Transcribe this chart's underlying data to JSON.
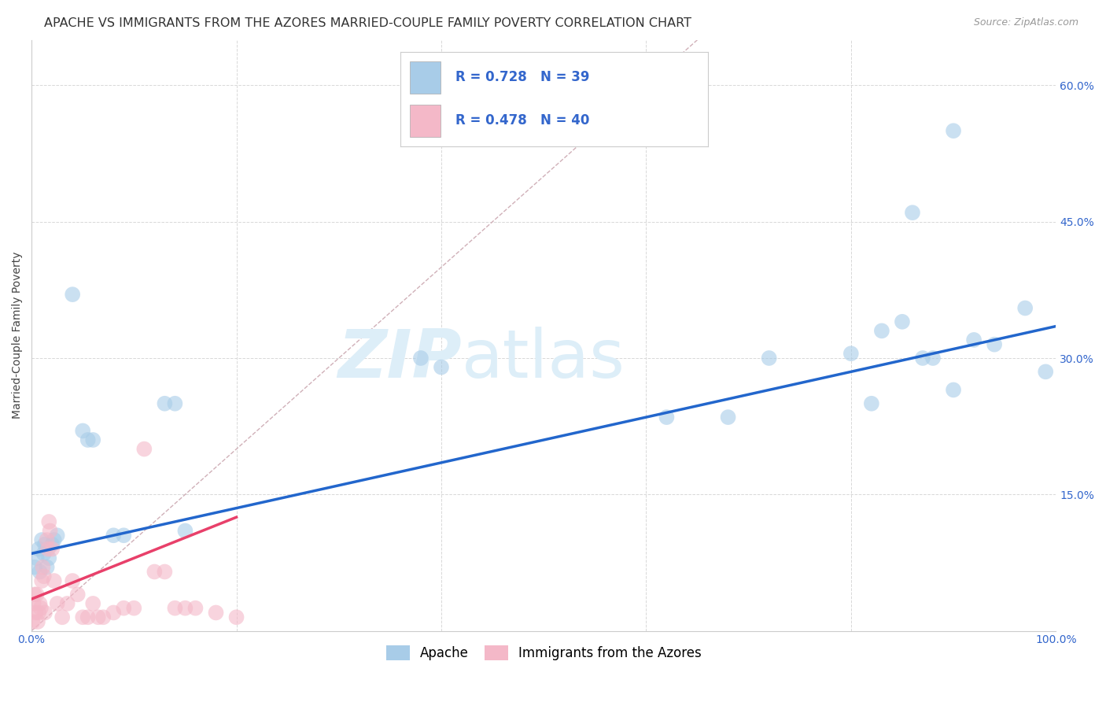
{
  "title": "APACHE VS IMMIGRANTS FROM THE AZORES MARRIED-COUPLE FAMILY POVERTY CORRELATION CHART",
  "source": "Source: ZipAtlas.com",
  "ylabel": "Married-Couple Family Poverty",
  "watermark_zip": "ZIP",
  "watermark_atlas": "atlas",
  "xlim": [
    0,
    1.0
  ],
  "ylim": [
    0,
    0.65
  ],
  "xticks": [
    0.0,
    0.2,
    0.4,
    0.6,
    0.8,
    1.0
  ],
  "xticklabels": [
    "0.0%",
    "",
    "",
    "",
    "",
    "100.0%"
  ],
  "yticks": [
    0.0,
    0.15,
    0.3,
    0.45,
    0.6
  ],
  "yticklabels": [
    "",
    "15.0%",
    "30.0%",
    "45.0%",
    "60.0%"
  ],
  "apache_R": 0.728,
  "apache_N": 39,
  "azores_R": 0.478,
  "azores_N": 40,
  "apache_color": "#a8cce8",
  "azores_color": "#f4b8c8",
  "trendline_apache_color": "#2266cc",
  "trendline_azores_color": "#e8406a",
  "diagonal_color": "#d0b0b8",
  "grid_color": "#d8d8d8",
  "apache_x": [
    0.003,
    0.005,
    0.007,
    0.008,
    0.01,
    0.012,
    0.013,
    0.015,
    0.017,
    0.02,
    0.022,
    0.025,
    0.04,
    0.05,
    0.055,
    0.06,
    0.08,
    0.09,
    0.13,
    0.14,
    0.15,
    0.38,
    0.4,
    0.62,
    0.68,
    0.72,
    0.8,
    0.82,
    0.83,
    0.85,
    0.86,
    0.87,
    0.88,
    0.9,
    0.9,
    0.92,
    0.94,
    0.97,
    0.99
  ],
  "apache_y": [
    0.07,
    0.08,
    0.09,
    0.065,
    0.1,
    0.085,
    0.095,
    0.07,
    0.08,
    0.095,
    0.1,
    0.105,
    0.37,
    0.22,
    0.21,
    0.21,
    0.105,
    0.105,
    0.25,
    0.25,
    0.11,
    0.3,
    0.29,
    0.235,
    0.235,
    0.3,
    0.305,
    0.25,
    0.33,
    0.34,
    0.46,
    0.3,
    0.3,
    0.265,
    0.55,
    0.32,
    0.315,
    0.355,
    0.285
  ],
  "azores_x": [
    0.001,
    0.002,
    0.003,
    0.004,
    0.005,
    0.006,
    0.007,
    0.008,
    0.009,
    0.01,
    0.011,
    0.012,
    0.013,
    0.015,
    0.016,
    0.017,
    0.018,
    0.02,
    0.022,
    0.025,
    0.03,
    0.035,
    0.04,
    0.045,
    0.05,
    0.055,
    0.06,
    0.065,
    0.07,
    0.08,
    0.09,
    0.1,
    0.11,
    0.12,
    0.13,
    0.14,
    0.15,
    0.16,
    0.18,
    0.2
  ],
  "azores_y": [
    0.01,
    0.03,
    0.04,
    0.02,
    0.04,
    0.01,
    0.02,
    0.03,
    0.025,
    0.055,
    0.07,
    0.06,
    0.02,
    0.1,
    0.09,
    0.12,
    0.11,
    0.09,
    0.055,
    0.03,
    0.015,
    0.03,
    0.055,
    0.04,
    0.015,
    0.015,
    0.03,
    0.015,
    0.015,
    0.02,
    0.025,
    0.025,
    0.2,
    0.065,
    0.065,
    0.025,
    0.025,
    0.025,
    0.02,
    0.015
  ],
  "apache_trend_x0": 0.0,
  "apache_trend_x1": 1.0,
  "apache_trend_y0": 0.085,
  "apache_trend_y1": 0.335,
  "azores_trend_x0": 0.0,
  "azores_trend_x1": 0.2,
  "azores_trend_y0": 0.035,
  "azores_trend_y1": 0.125,
  "legend_label_apache": "Apache",
  "legend_label_azores": "Immigrants from the Azores",
  "title_fontsize": 11.5,
  "source_fontsize": 9,
  "label_fontsize": 10,
  "tick_fontsize": 10,
  "legend_fontsize": 12
}
